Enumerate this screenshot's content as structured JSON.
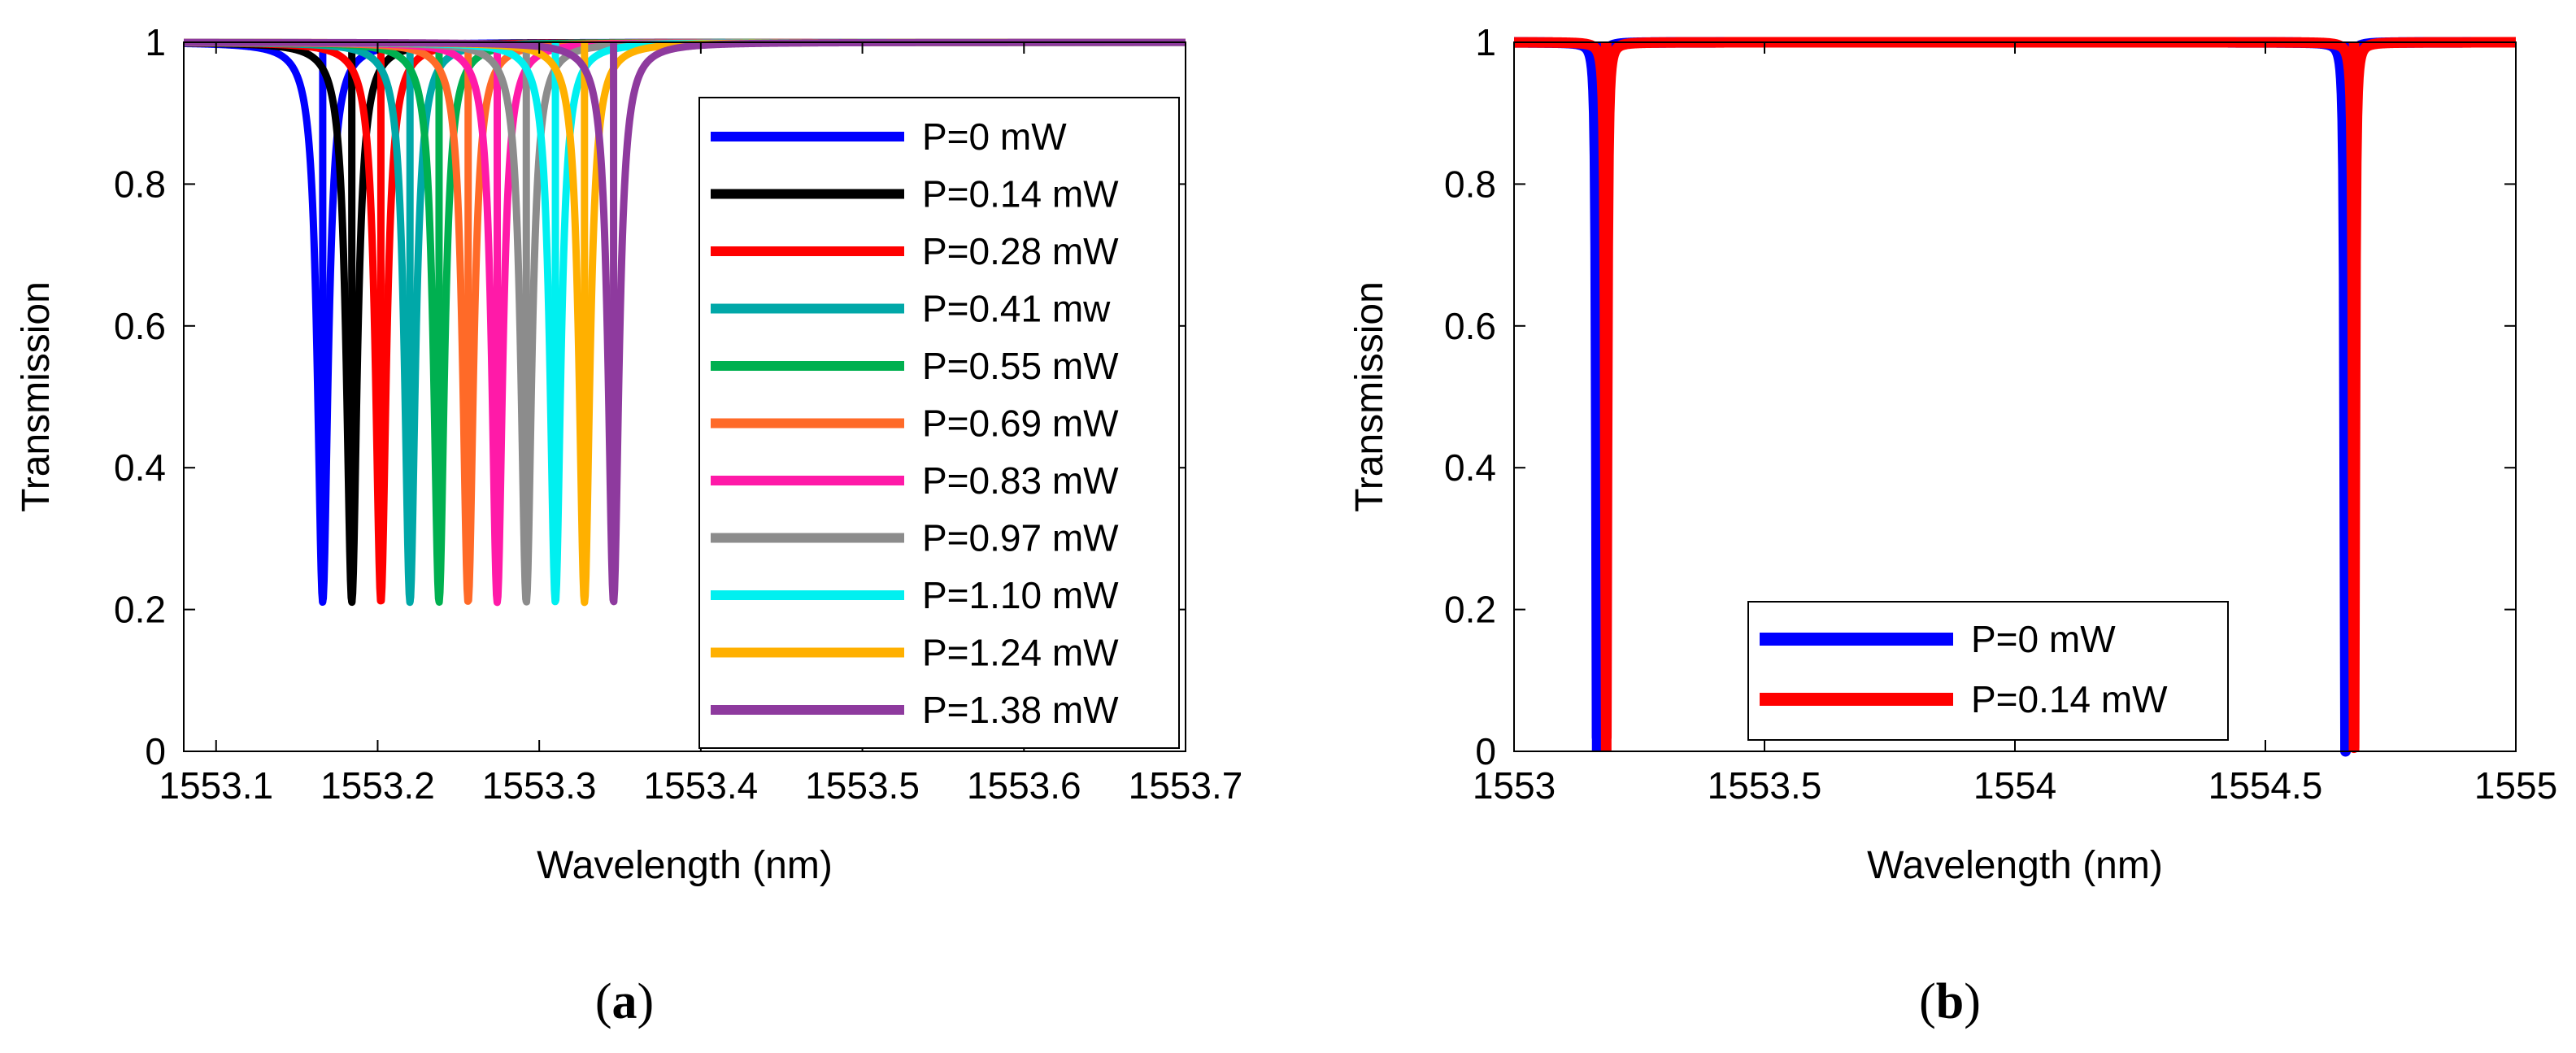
{
  "chart_data": [
    {
      "type": "line",
      "panel_label": "a",
      "xlabel": "Wavelength (nm)",
      "ylabel": "Transmission",
      "xlim": [
        1553.08,
        1553.7
      ],
      "ylim": [
        0,
        1
      ],
      "xticks": [
        "1553.1",
        "1553.2",
        "1553.3",
        "1553.4",
        "1553.5",
        "1553.6",
        "1553.7"
      ],
      "xtick_values": [
        1553.1,
        1553.2,
        1553.3,
        1553.4,
        1553.5,
        1553.6,
        1553.7
      ],
      "yticks": [
        "0",
        "0.2",
        "0.4",
        "0.6",
        "0.8",
        "1"
      ],
      "ytick_values": [
        0,
        0.2,
        0.4,
        0.6,
        0.8,
        1
      ],
      "legend_position": "right",
      "grid": false,
      "series": [
        {
          "name": "P=0 mW",
          "color": "#0000ff",
          "resonance_nm": 1553.166,
          "min_transmission": 0.21,
          "linewidth_nm": 0.008
        },
        {
          "name": "P=0.14 mW",
          "color": "#000000",
          "resonance_nm": 1553.184,
          "min_transmission": 0.21,
          "linewidth_nm": 0.008
        },
        {
          "name": "P=0.28 mW",
          "color": "#ff0000",
          "resonance_nm": 1553.202,
          "min_transmission": 0.21,
          "linewidth_nm": 0.008
        },
        {
          "name": "P=0.41 mw",
          "color": "#00a8a8",
          "resonance_nm": 1553.22,
          "min_transmission": 0.21,
          "linewidth_nm": 0.008
        },
        {
          "name": "P=0.55 mW",
          "color": "#00b050",
          "resonance_nm": 1553.238,
          "min_transmission": 0.21,
          "linewidth_nm": 0.008
        },
        {
          "name": "P=0.69 mW",
          "color": "#ff6a28",
          "resonance_nm": 1553.256,
          "min_transmission": 0.21,
          "linewidth_nm": 0.008
        },
        {
          "name": "P=0.83 mW",
          "color": "#ff1aa8",
          "resonance_nm": 1553.274,
          "min_transmission": 0.21,
          "linewidth_nm": 0.008
        },
        {
          "name": "P=0.97 mW",
          "color": "#8c8c8c",
          "resonance_nm": 1553.292,
          "min_transmission": 0.21,
          "linewidth_nm": 0.008
        },
        {
          "name": "P=1.10 mW",
          "color": "#00f0f0",
          "resonance_nm": 1553.31,
          "min_transmission": 0.21,
          "linewidth_nm": 0.008
        },
        {
          "name": "P=1.24 mW",
          "color": "#ffb000",
          "resonance_nm": 1553.328,
          "min_transmission": 0.21,
          "linewidth_nm": 0.008
        },
        {
          "name": "P=1.38 mW",
          "color": "#8e3a9e",
          "resonance_nm": 1553.346,
          "min_transmission": 0.21,
          "linewidth_nm": 0.008
        }
      ]
    },
    {
      "type": "line",
      "panel_label": "b",
      "xlabel": "Wavelength (nm)",
      "ylabel": "Transmission",
      "xlim": [
        1553,
        1555
      ],
      "ylim": [
        0,
        1
      ],
      "xticks": [
        "1553",
        "1553.5",
        "1554",
        "1554.5",
        "1555"
      ],
      "xtick_values": [
        1553,
        1553.5,
        1554,
        1554.5,
        1555
      ],
      "yticks": [
        "0",
        "0.2",
        "0.4",
        "0.6",
        "0.8",
        "1"
      ],
      "ytick_values": [
        0,
        0.2,
        0.4,
        0.6,
        0.8,
        1
      ],
      "legend_position": "bottom-center",
      "grid": false,
      "series": [
        {
          "name": "P=0 mW",
          "color": "#0000ff",
          "resonance_nm": [
            1553.166,
            1554.66
          ],
          "min_transmission": 0.0,
          "linewidth_nm": 0.004
        },
        {
          "name": "P=0.14 mW",
          "color": "#ff0000",
          "resonance_nm": [
            1553.184,
            1554.677
          ],
          "min_transmission": 0.0,
          "linewidth_nm": 0.004
        }
      ]
    }
  ]
}
